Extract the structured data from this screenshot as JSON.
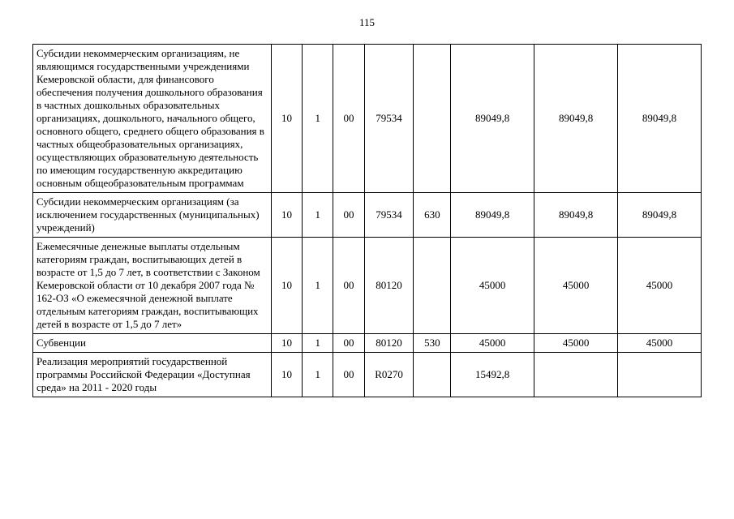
{
  "page_number": "115",
  "table": {
    "columns": [
      "desc",
      "c1",
      "c2",
      "c3",
      "c4",
      "c5",
      "v1",
      "v2",
      "v3"
    ],
    "rows": [
      {
        "desc": "Субсидии некоммерческим организациям, не являющимся государственными учреждениями Кемеровской области, для финансового обеспечения получения дошкольного образования в частных дошкольных образовательных организациях, дошкольного, начального общего, основного общего, среднего общего образования в частных общеобразовательных организациях, осуществляющих образовательную деятельность по имеющим государственную аккредитацию основным общеобразовательным программам",
        "c1": "10",
        "c2": "1",
        "c3": "00",
        "c4": "79534",
        "c5": "",
        "v1": "89049,8",
        "v2": "89049,8",
        "v3": "89049,8"
      },
      {
        "desc": "Субсидии некоммерческим организациям (за исключением государственных (муниципальных) учреждений)",
        "c1": "10",
        "c2": "1",
        "c3": "00",
        "c4": "79534",
        "c5": "630",
        "v1": "89049,8",
        "v2": "89049,8",
        "v3": "89049,8"
      },
      {
        "desc": "Ежемесячные денежные выплаты отдельным категориям граждан, воспитывающих детей в возрасте от 1,5 до 7 лет, в соответствии с Законом Кемеровской области от 10 декабря 2007 года № 162-ОЗ «О ежемесячной денежной выплате отдельным категориям граждан, воспитывающих детей в возрасте от 1,5 до 7 лет»",
        "c1": "10",
        "c2": "1",
        "c3": "00",
        "c4": "80120",
        "c5": "",
        "v1": "45000",
        "v2": "45000",
        "v3": "45000"
      },
      {
        "desc": "Субвенции",
        "c1": "10",
        "c2": "1",
        "c3": "00",
        "c4": "80120",
        "c5": "530",
        "v1": "45000",
        "v2": "45000",
        "v3": "45000"
      },
      {
        "desc": "Реализация мероприятий государственной программы Российской Федерации «Доступная среда» на 2011 - 2020 годы",
        "c1": "10",
        "c2": "1",
        "c3": "00",
        "c4": "R0270",
        "c5": "",
        "v1": "15492,8",
        "v2": "",
        "v3": ""
      }
    ]
  }
}
